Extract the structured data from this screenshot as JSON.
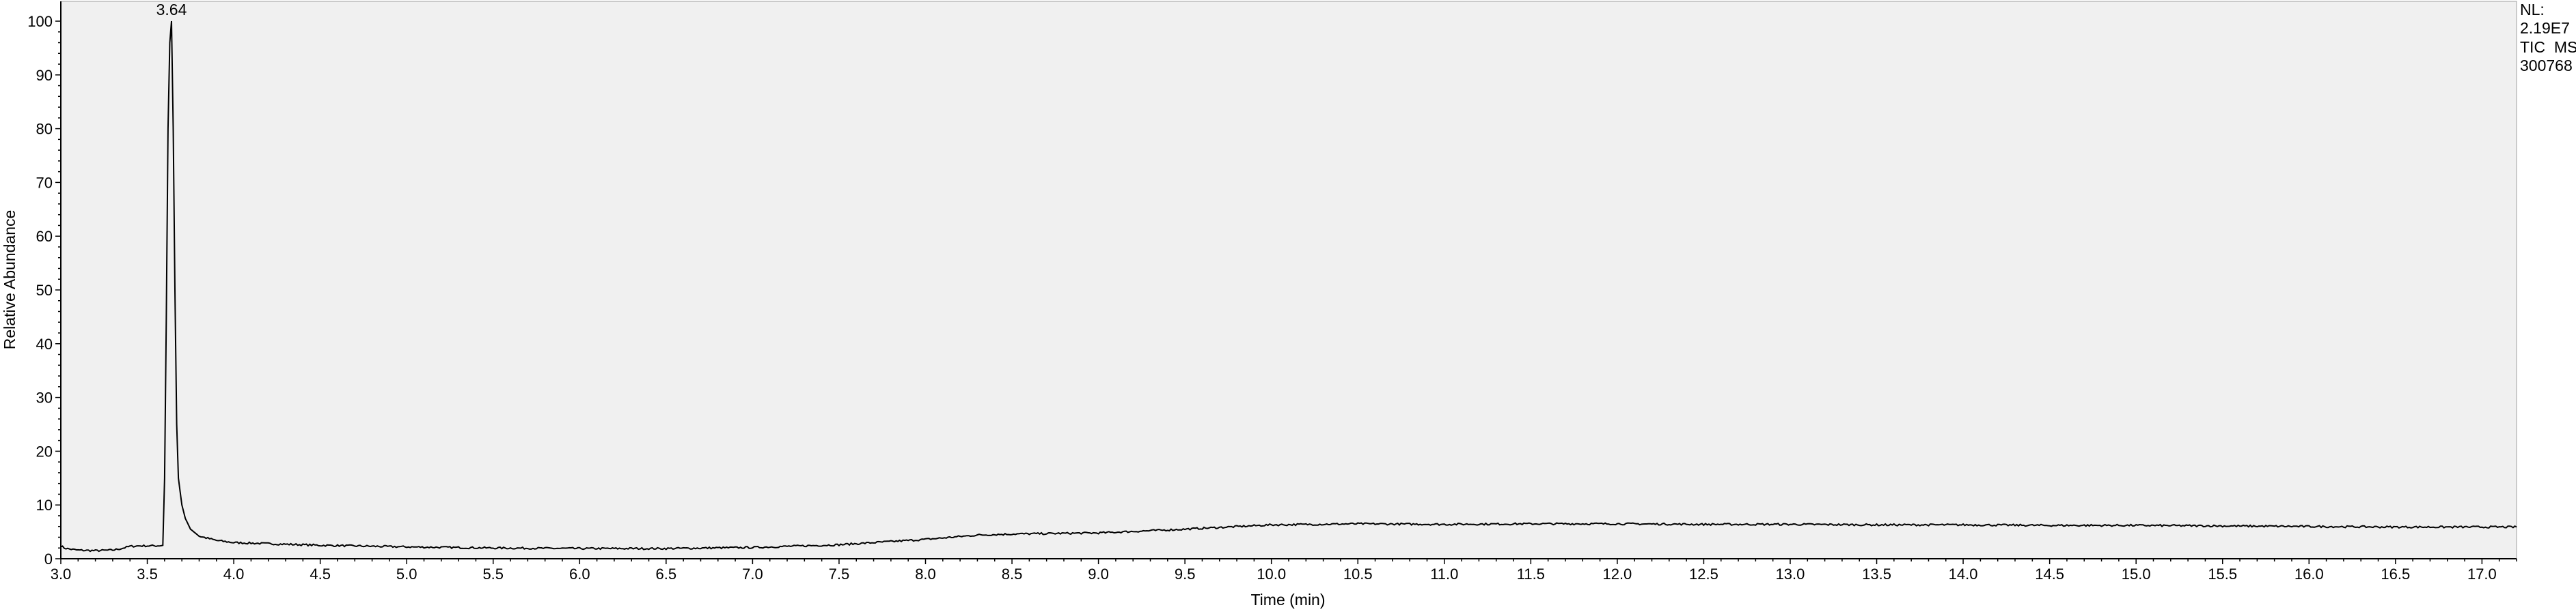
{
  "chart_data": {
    "type": "line",
    "title": "",
    "xlabel": "Time (min)",
    "ylabel": "Relative Abundance",
    "xlim": [
      3.0,
      17.2
    ],
    "ylim": [
      0,
      100
    ],
    "x_ticks": [
      "3.0",
      "3.5",
      "4.0",
      "4.5",
      "5.0",
      "5.5",
      "6.0",
      "6.5",
      "7.0",
      "7.5",
      "8.0",
      "8.5",
      "9.0",
      "9.5",
      "10.0",
      "10.5",
      "11.0",
      "11.5",
      "12.0",
      "12.5",
      "13.0",
      "13.5",
      "14.0",
      "14.5",
      "15.0",
      "15.5",
      "16.0",
      "16.5",
      "17.0"
    ],
    "y_ticks": [
      "0",
      "10",
      "20",
      "30",
      "40",
      "50",
      "60",
      "70",
      "80",
      "90",
      "100"
    ],
    "grid": false,
    "peak_label": {
      "x": 3.64,
      "y": 100,
      "text": "3.64"
    },
    "info_box": [
      "NL:",
      "2.19E7",
      "TIC  MS",
      "300768"
    ],
    "series": [
      {
        "x": [
          3.0,
          3.02,
          3.05,
          3.1,
          3.2,
          3.3,
          3.35,
          3.4,
          3.45,
          3.5,
          3.55,
          3.59,
          3.6,
          3.61,
          3.62,
          3.63,
          3.64,
          3.65,
          3.66,
          3.67,
          3.68,
          3.7,
          3.72,
          3.75,
          3.8,
          3.9,
          4.0,
          4.2,
          4.5,
          5.0,
          5.5,
          6.0,
          6.5,
          7.0,
          7.5,
          8.0,
          8.3,
          8.5,
          9.0,
          9.5,
          10.0,
          10.5,
          11.0,
          11.5,
          12.0,
          12.5,
          13.0,
          13.5,
          14.0,
          14.5,
          15.0,
          15.5,
          16.0,
          16.5,
          17.0,
          17.2
        ],
        "y": [
          2.4,
          2.0,
          1.8,
          1.6,
          1.5,
          1.6,
          1.9,
          2.3,
          2.4,
          2.4,
          2.4,
          2.5,
          15,
          45,
          80,
          96,
          100,
          80,
          50,
          25,
          15,
          10,
          7.5,
          5.5,
          4.2,
          3.4,
          3.0,
          2.8,
          2.5,
          2.2,
          2.0,
          1.9,
          1.9,
          2.1,
          2.6,
          3.6,
          4.4,
          4.6,
          4.8,
          5.5,
          6.3,
          6.5,
          6.4,
          6.5,
          6.5,
          6.4,
          6.4,
          6.3,
          6.3,
          6.2,
          6.2,
          6.1,
          6.0,
          5.9,
          5.9,
          5.9
        ]
      }
    ]
  }
}
